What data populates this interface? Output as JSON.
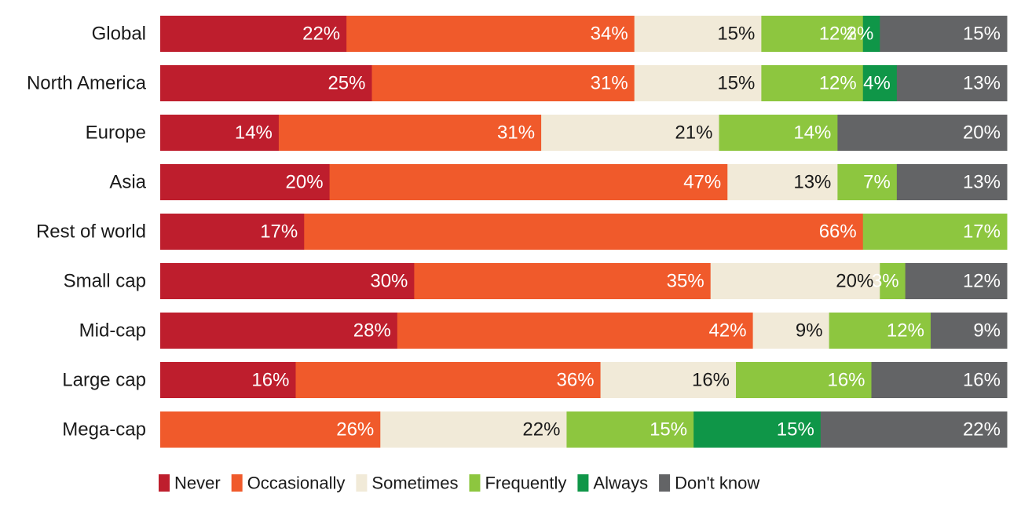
{
  "chart_data": {
    "type": "bar",
    "orientation": "horizontal",
    "stacked": true,
    "normalized_percent": true,
    "title": "",
    "xlabel": "",
    "ylabel": "",
    "grid": false,
    "legend_placement": "bottom-left",
    "categories": [
      "Global",
      "North America",
      "Europe",
      "Asia",
      "Rest of world",
      "Small cap",
      "Mid-cap",
      "Large cap",
      "Mega-cap"
    ],
    "series": [
      {
        "name": "Never",
        "color": "#be1e2d",
        "label_color": "#ffffff",
        "values": [
          22,
          25,
          14,
          20,
          17,
          30,
          28,
          16,
          0
        ]
      },
      {
        "name": "Occasionally",
        "color": "#f05a2b",
        "label_color": "#ffffff",
        "values": [
          34,
          31,
          31,
          47,
          66,
          35,
          42,
          36,
          26
        ]
      },
      {
        "name": "Sometimes",
        "color": "#f1ead8",
        "label_color": "#1a1a1a",
        "values": [
          15,
          15,
          21,
          13,
          0,
          20,
          9,
          16,
          22
        ]
      },
      {
        "name": "Frequently",
        "color": "#8dc63f",
        "label_color": "#ffffff",
        "values": [
          12,
          12,
          14,
          7,
          17,
          3,
          12,
          16,
          15
        ]
      },
      {
        "name": "Always",
        "color": "#0f9648",
        "label_color": "#ffffff",
        "values": [
          2,
          4,
          0,
          0,
          0,
          0,
          0,
          0,
          15
        ]
      },
      {
        "name": "Don't know",
        "color": "#636466",
        "label_color": "#ffffff",
        "values": [
          15,
          13,
          20,
          13,
          0,
          12,
          9,
          16,
          22
        ]
      }
    ]
  }
}
